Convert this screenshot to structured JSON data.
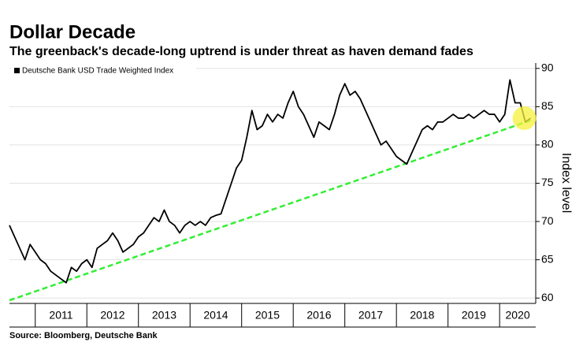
{
  "chart_data": {
    "type": "line",
    "title": "Dollar Decade",
    "subtitle": "The greenback's decade-long uptrend is under threat as haven demand fades",
    "source": "Source: Bloomberg, Deutsche Bank",
    "y_label": "Index level",
    "legend": "upper left",
    "grid": true,
    "xlim": [
      2010.5,
      2020.7
    ],
    "xticks": [
      2011,
      2012,
      2013,
      2014,
      2015,
      2016,
      2017,
      2018,
      2019,
      2020
    ],
    "ylim": [
      59.3,
      90.7
    ],
    "yticks": [
      60,
      65,
      70,
      75,
      80,
      85,
      90
    ],
    "x": [
      2010.5,
      2010.6,
      2010.7,
      2010.8,
      2010.9,
      2011.0,
      2011.1,
      2011.2,
      2011.3,
      2011.4,
      2011.5,
      2011.6,
      2011.7,
      2011.8,
      2011.9,
      2012.0,
      2012.1,
      2012.2,
      2012.3,
      2012.4,
      2012.5,
      2012.6,
      2012.7,
      2012.8,
      2012.9,
      2013.0,
      2013.1,
      2013.2,
      2013.3,
      2013.4,
      2013.5,
      2013.6,
      2013.7,
      2013.8,
      2013.9,
      2014.0,
      2014.1,
      2014.2,
      2014.3,
      2014.4,
      2014.5,
      2014.6,
      2014.7,
      2014.8,
      2014.9,
      2015.0,
      2015.1,
      2015.2,
      2015.3,
      2015.4,
      2015.5,
      2015.6,
      2015.7,
      2015.8,
      2015.9,
      2016.0,
      2016.1,
      2016.2,
      2016.3,
      2016.4,
      2016.5,
      2016.6,
      2016.7,
      2016.8,
      2016.9,
      2017.0,
      2017.1,
      2017.2,
      2017.3,
      2017.4,
      2017.5,
      2017.6,
      2017.7,
      2017.8,
      2017.9,
      2018.0,
      2018.1,
      2018.2,
      2018.3,
      2018.4,
      2018.5,
      2018.6,
      2018.7,
      2018.8,
      2018.9,
      2019.0,
      2019.1,
      2019.2,
      2019.3,
      2019.4,
      2019.5,
      2019.6,
      2019.7,
      2019.8,
      2019.9,
      2020.0,
      2020.1,
      2020.2,
      2020.3,
      2020.4,
      2020.5,
      2020.6
    ],
    "series": [
      {
        "name": "Deutsche Bank USD Trade Weighted Index",
        "color": "#000000",
        "values": [
          69.5,
          68,
          66.5,
          65,
          67,
          66,
          65,
          64.5,
          63.5,
          63,
          62.5,
          62,
          64,
          63.5,
          64.5,
          65,
          64,
          66.5,
          67,
          67.5,
          68.5,
          67.5,
          66,
          66.5,
          67,
          68,
          68.5,
          69.5,
          70.5,
          70,
          71.5,
          70,
          69.5,
          68.5,
          69.5,
          70,
          69.5,
          70,
          69.5,
          70.5,
          70.8,
          71,
          73,
          75,
          77,
          78,
          81,
          84.5,
          82,
          82.5,
          84,
          83,
          84,
          83.5,
          85.5,
          87,
          85,
          84,
          82.5,
          81,
          83,
          82.5,
          82,
          84,
          86.5,
          88,
          86.5,
          87,
          86,
          84.5,
          83,
          81.5,
          80,
          80.5,
          79.5,
          78.5,
          78,
          77.5,
          79,
          80.5,
          82,
          82.5,
          82,
          83,
          83,
          83.5,
          84,
          83.5,
          83.5,
          84,
          83.5,
          84,
          84.5,
          84,
          84,
          83,
          84,
          88.5,
          85.5,
          85.5,
          83,
          83.5
        ]
      }
    ],
    "trendline": {
      "x": [
        2010.5,
        2020.6
      ],
      "values": [
        59.7,
        83.2
      ],
      "color": "#33ee33"
    },
    "highlight": {
      "x": 2020.48,
      "y": 83.5,
      "color": "#f5f03a"
    }
  }
}
